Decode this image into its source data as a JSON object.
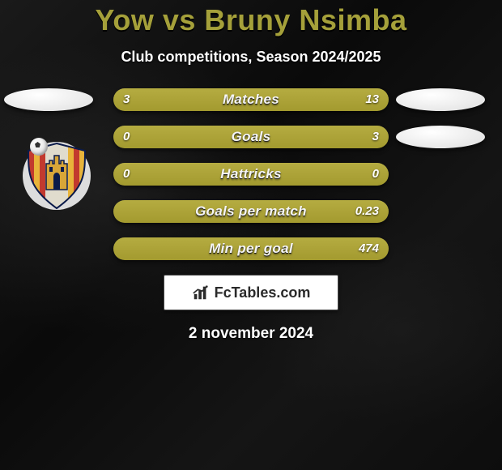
{
  "header": {
    "title": "Yow vs Bruny Nsimba",
    "subtitle": "Club competitions, Season 2024/2025",
    "title_color": "#a5a03a",
    "title_fontsize": 36,
    "subtitle_fontsize": 18
  },
  "players": {
    "left": {
      "oval_color": "#e8e8e8"
    },
    "right": {
      "oval_color_row1": "#e8e8e8",
      "oval_color_row2": "#e8e8e8"
    }
  },
  "crest": {
    "bg_color": "#dddddd",
    "stripes": [
      "#c23a2e",
      "#e8b43a"
    ],
    "castle_color": "#d8a638",
    "outline": "#0b1b4a"
  },
  "bars": {
    "left_color": "#a39a2f",
    "right_color": "#a39a2f",
    "divider_color": "#b8b048",
    "height": 28,
    "gap": 18,
    "label_fontsize": 17,
    "value_fontsize": 15,
    "rows": [
      {
        "label": "Matches",
        "left_val": "3",
        "right_val": "13",
        "left_pct": 18.75,
        "right_pct": 81.25
      },
      {
        "label": "Goals",
        "left_val": "0",
        "right_val": "3",
        "left_pct": 0,
        "right_pct": 100
      },
      {
        "label": "Hattricks",
        "left_val": "0",
        "right_val": "0",
        "left_pct": 50,
        "right_pct": 50
      },
      {
        "label": "Goals per match",
        "left_val": "",
        "right_val": "0.23",
        "left_pct": 0,
        "right_pct": 100
      },
      {
        "label": "Min per goal",
        "left_val": "",
        "right_val": "474",
        "left_pct": 0,
        "right_pct": 100
      }
    ]
  },
  "brand": {
    "text": "FcTables.com"
  },
  "date": {
    "text": "2 november 2024",
    "fontsize": 19
  },
  "background": {
    "base": "#0e0e0e"
  }
}
